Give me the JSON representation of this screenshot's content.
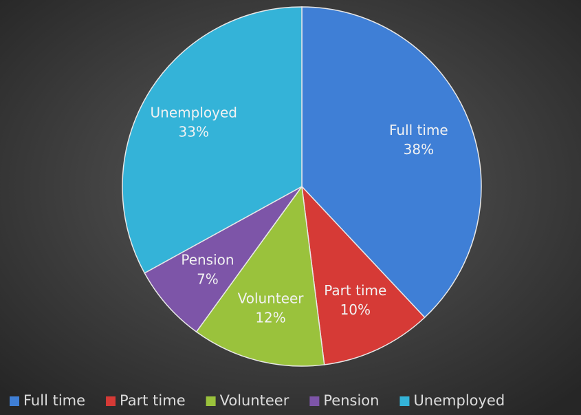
{
  "chart_data": {
    "type": "pie",
    "categories": [
      "Full time",
      "Part time",
      "Volunteer",
      "Pension",
      "Unemployed"
    ],
    "values": [
      38,
      10,
      12,
      7,
      33
    ],
    "value_labels": [
      "38%",
      "10%",
      "12%",
      "7%",
      "33%"
    ],
    "colors": [
      "#3f7fd6",
      "#d63a36",
      "#9ac23c",
      "#7d55a8",
      "#34b3d8"
    ],
    "legend": "bottom"
  }
}
